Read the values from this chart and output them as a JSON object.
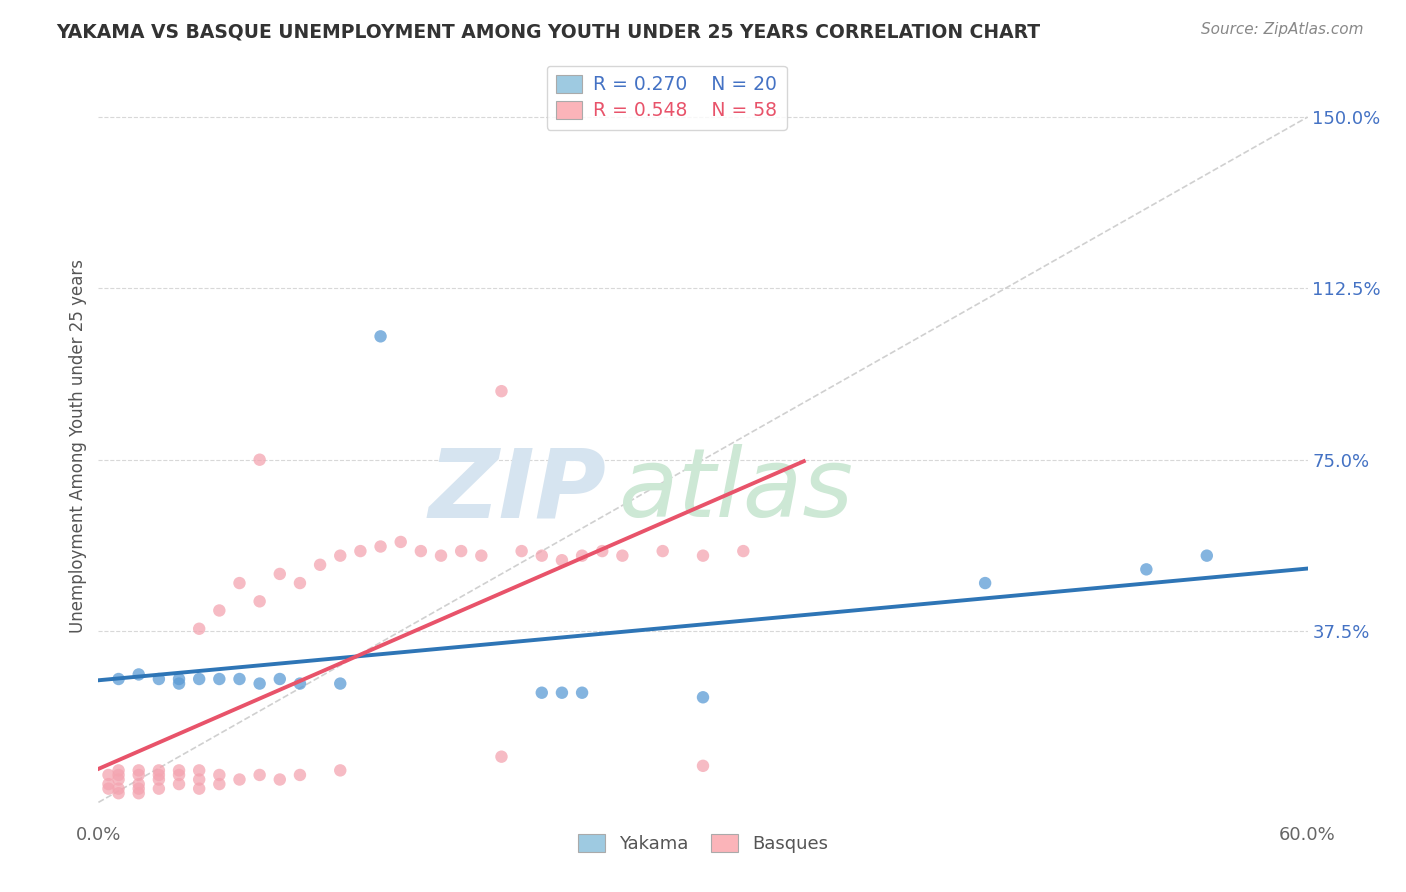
{
  "title": "YAKAMA VS BASQUE UNEMPLOYMENT AMONG YOUTH UNDER 25 YEARS CORRELATION CHART",
  "source": "Source: ZipAtlas.com",
  "ylabel_label": "Unemployment Among Youth under 25 years",
  "right_yticks": [
    "150.0%",
    "112.5%",
    "75.0%",
    "37.5%"
  ],
  "right_ytick_vals": [
    1.5,
    1.125,
    0.75,
    0.375
  ],
  "xmin": 0.0,
  "xmax": 0.6,
  "ymin": -0.04,
  "ymax": 1.6,
  "watermark_top": "ZIP",
  "watermark_bot": "atlas",
  "yakama_color": "#5b9bd5",
  "basque_color": "#f4a4b0",
  "yakama_R": 0.27,
  "yakama_N": 20,
  "basque_R": 0.548,
  "basque_N": 58,
  "yakama_line_color": "#2E75B6",
  "basque_line_color": "#E8536A",
  "diag_color": "#d0d0d0",
  "legend_yakama_color": "#9ecae1",
  "legend_basque_color": "#fbb4b9",
  "legend_text_yakama": "#4472c4",
  "legend_text_basque": "#E8536A",
  "yakama_x": [
    0.01,
    0.02,
    0.03,
    0.04,
    0.04,
    0.05,
    0.06,
    0.07,
    0.08,
    0.09,
    0.1,
    0.12,
    0.14,
    0.22,
    0.23,
    0.24,
    0.3,
    0.44,
    0.52,
    0.55
  ],
  "yakama_y": [
    0.27,
    0.28,
    0.27,
    0.27,
    0.26,
    0.27,
    0.27,
    0.27,
    0.26,
    0.27,
    0.26,
    0.26,
    1.02,
    0.24,
    0.24,
    0.24,
    0.23,
    0.48,
    0.51,
    0.54
  ],
  "basque_x": [
    0.005,
    0.005,
    0.005,
    0.01,
    0.01,
    0.01,
    0.01,
    0.01,
    0.02,
    0.02,
    0.02,
    0.02,
    0.02,
    0.03,
    0.03,
    0.03,
    0.03,
    0.04,
    0.04,
    0.04,
    0.05,
    0.05,
    0.05,
    0.05,
    0.06,
    0.06,
    0.06,
    0.07,
    0.07,
    0.08,
    0.08,
    0.09,
    0.09,
    0.1,
    0.1,
    0.11,
    0.12,
    0.12,
    0.13,
    0.14,
    0.15,
    0.16,
    0.17,
    0.18,
    0.19,
    0.2,
    0.21,
    0.22,
    0.23,
    0.24,
    0.25,
    0.26,
    0.28,
    0.3,
    0.3,
    0.32,
    0.2,
    0.08
  ],
  "basque_y": [
    0.03,
    0.04,
    0.06,
    0.02,
    0.03,
    0.05,
    0.06,
    0.07,
    0.02,
    0.03,
    0.04,
    0.06,
    0.07,
    0.03,
    0.05,
    0.06,
    0.07,
    0.04,
    0.06,
    0.07,
    0.03,
    0.05,
    0.38,
    0.07,
    0.04,
    0.06,
    0.42,
    0.05,
    0.48,
    0.06,
    0.44,
    0.05,
    0.5,
    0.06,
    0.48,
    0.52,
    0.54,
    0.07,
    0.55,
    0.56,
    0.57,
    0.55,
    0.54,
    0.55,
    0.54,
    0.9,
    0.55,
    0.54,
    0.53,
    0.54,
    0.55,
    0.54,
    0.55,
    0.54,
    0.08,
    0.55,
    0.1,
    0.75
  ]
}
